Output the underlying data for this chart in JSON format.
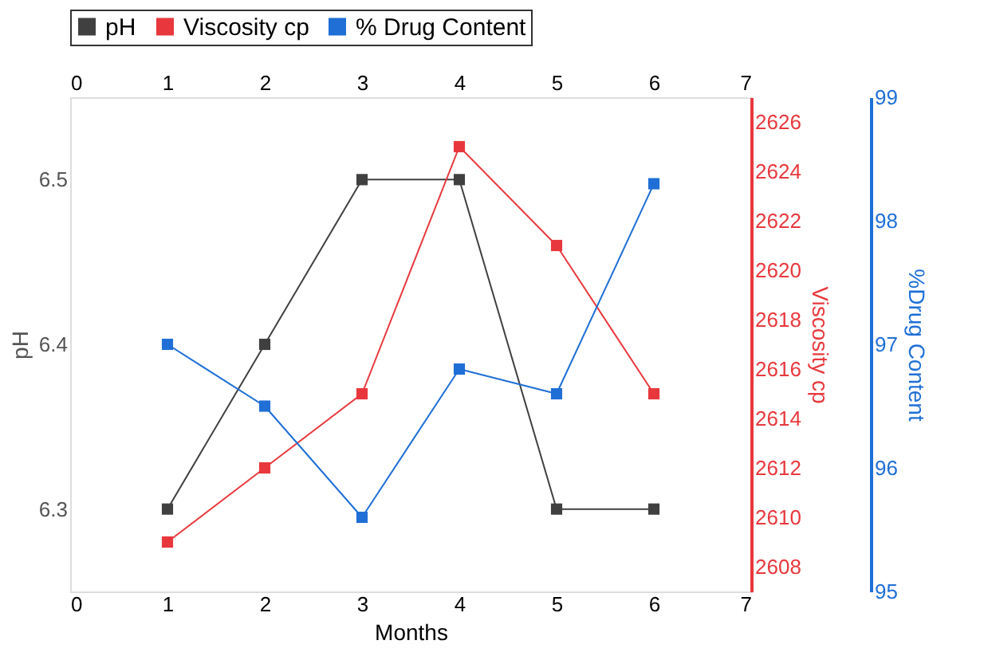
{
  "chart_data": {
    "type": "line",
    "xlabel": "Months",
    "ylabel": "pH",
    "y2label": "Viscosity cp",
    "y3label": "%Drug Content",
    "x": [
      1,
      2,
      3,
      4,
      5,
      6
    ],
    "series": [
      {
        "name": "pH",
        "color": "#404040",
        "values": [
          6.3,
          6.4,
          6.5,
          6.5,
          6.3,
          6.3
        ]
      },
      {
        "name": "Viscosity cp",
        "color": "#e8383d",
        "axis": "y2",
        "values": [
          2609,
          2612,
          2615,
          2625,
          2621,
          2615
        ]
      },
      {
        "name": "% Drug Content",
        "color": "#1f6fd6",
        "axis": "y3",
        "values": [
          97,
          96.5,
          95.6,
          96.8,
          96.6,
          98.3
        ]
      }
    ],
    "xlim": [
      0,
      7
    ],
    "xticks": [
      0,
      1,
      2,
      3,
      4,
      5,
      6,
      7
    ],
    "x2lim": [
      0,
      7
    ],
    "x2ticks": [
      0,
      1,
      2,
      3,
      4,
      5,
      6,
      7
    ],
    "ylim": [
      6.25,
      6.55
    ],
    "yticks": [
      6.3,
      6.4,
      6.5
    ],
    "y2lim": [
      2607,
      2627
    ],
    "y2ticks": [
      2608,
      2610,
      2612,
      2614,
      2616,
      2618,
      2620,
      2622,
      2624,
      2626
    ],
    "y3lim": [
      95,
      99
    ],
    "y3ticks": [
      95,
      96,
      97,
      98,
      99
    ],
    "legend": "top",
    "marker": "square",
    "line_style": "solid",
    "grid": false
  }
}
